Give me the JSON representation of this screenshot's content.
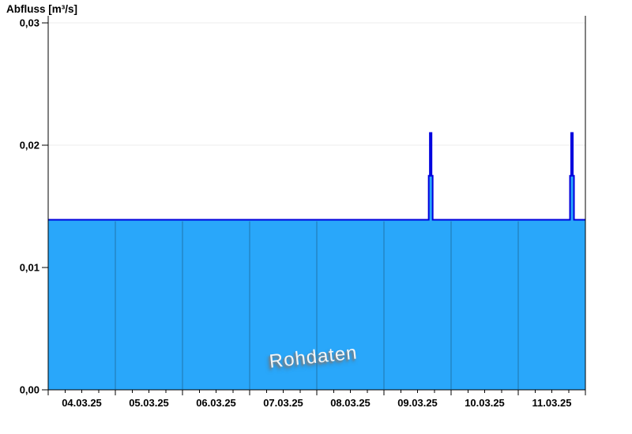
{
  "header": {
    "title": "Abfluss [m³/s]"
  },
  "watermark": {
    "text": "Rohdaten"
  },
  "colors": {
    "background": "#ffffff",
    "area_fill": "#29a7fa",
    "series_line": "#0000dd",
    "day_separator": "#1f76ac",
    "grid": "#ececec",
    "axis": "#000000",
    "tick_text": "#000000",
    "watermark_fill": "#f5f5f5",
    "watermark_shadow": "#7d7d7d"
  },
  "chart_data": {
    "type": "area",
    "title": "Abfluss [m³/s]",
    "ylabel": "Abfluss [m³/s]",
    "xlabel": "",
    "ylim": [
      0,
      0.03
    ],
    "yticks": [
      {
        "value": 0.0,
        "label": "0,00"
      },
      {
        "value": 0.01,
        "label": "0,01"
      },
      {
        "value": 0.02,
        "label": "0,02"
      },
      {
        "value": 0.03,
        "label": "0,03"
      }
    ],
    "xticks": [
      "04.03.25",
      "05.03.25",
      "06.03.25",
      "07.03.25",
      "08.03.25",
      "09.03.25",
      "10.03.25",
      "11.03.25"
    ],
    "x_range": [
      "04.03.25 00:00",
      "12.03.25 00:00"
    ],
    "x_range_days": 8,
    "minor_tick_intervals_per_day": 4,
    "grid": true,
    "legend": "none",
    "watermark": "Rohdaten",
    "series": [
      {
        "name": "Rohdaten",
        "interpolation": "step-after",
        "baseline_value": 0.0139,
        "points": [
          {
            "t": "04.03.25 00:00",
            "v": 0.0139
          },
          {
            "t": "09.03.25 16:00",
            "v": 0.0175
          },
          {
            "t": "09.03.25 16:25",
            "v": 0.021
          },
          {
            "t": "09.03.25 17:00",
            "v": 0.0175
          },
          {
            "t": "09.03.25 17:25",
            "v": 0.0139
          },
          {
            "t": "11.03.25 18:30",
            "v": 0.0175
          },
          {
            "t": "11.03.25 18:55",
            "v": 0.021
          },
          {
            "t": "11.03.25 19:30",
            "v": 0.0175
          },
          {
            "t": "11.03.25 19:55",
            "v": 0.0139
          },
          {
            "t": "12.03.25 00:00",
            "v": 0.0139
          }
        ]
      }
    ]
  }
}
